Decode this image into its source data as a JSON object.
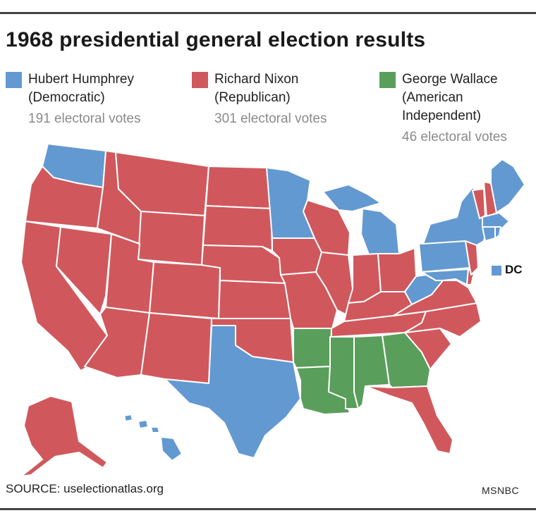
{
  "title": "1968 presidential general election results",
  "legend": [
    {
      "name_line1": "Hubert Humphrey",
      "name_line2": "(Democratic)",
      "name_line3": "",
      "votes": "191 electoral votes",
      "color": "#6399d1"
    },
    {
      "name_line1": "Richard Nixon",
      "name_line2": "(Republican)",
      "name_line3": "",
      "votes": "301 electoral votes",
      "color": "#d0585c"
    },
    {
      "name_line1": "George Wallace",
      "name_line2": "(American",
      "name_line3": "Independent)",
      "votes": "46 electoral votes",
      "color": "#5a9e5c"
    }
  ],
  "map": {
    "dc_label": "DC",
    "colors": {
      "democratic": "#6399d1",
      "republican": "#d0585c",
      "american_independent": "#5a9e5c",
      "border": "#ffffff"
    },
    "states": [
      {
        "state": "Washington",
        "winner": "democratic"
      },
      {
        "state": "Oregon",
        "winner": "republican"
      },
      {
        "state": "California",
        "winner": "republican"
      },
      {
        "state": "Nevada",
        "winner": "republican"
      },
      {
        "state": "Idaho",
        "winner": "republican"
      },
      {
        "state": "Montana",
        "winner": "republican"
      },
      {
        "state": "Wyoming",
        "winner": "republican"
      },
      {
        "state": "Utah",
        "winner": "republican"
      },
      {
        "state": "Arizona",
        "winner": "republican"
      },
      {
        "state": "Colorado",
        "winner": "republican"
      },
      {
        "state": "New Mexico",
        "winner": "republican"
      },
      {
        "state": "North Dakota",
        "winner": "republican"
      },
      {
        "state": "South Dakota",
        "winner": "republican"
      },
      {
        "state": "Nebraska",
        "winner": "republican"
      },
      {
        "state": "Kansas",
        "winner": "republican"
      },
      {
        "state": "Oklahoma",
        "winner": "republican"
      },
      {
        "state": "Texas",
        "winner": "democratic"
      },
      {
        "state": "Minnesota",
        "winner": "democratic"
      },
      {
        "state": "Iowa",
        "winner": "republican"
      },
      {
        "state": "Missouri",
        "winner": "republican"
      },
      {
        "state": "Arkansas",
        "winner": "american_independent"
      },
      {
        "state": "Louisiana",
        "winner": "american_independent"
      },
      {
        "state": "Wisconsin",
        "winner": "republican"
      },
      {
        "state": "Illinois",
        "winner": "republican"
      },
      {
        "state": "Michigan",
        "winner": "democratic"
      },
      {
        "state": "Indiana",
        "winner": "republican"
      },
      {
        "state": "Ohio",
        "winner": "republican"
      },
      {
        "state": "Kentucky",
        "winner": "republican"
      },
      {
        "state": "Tennessee",
        "winner": "republican"
      },
      {
        "state": "Mississippi",
        "winner": "american_independent"
      },
      {
        "state": "Alabama",
        "winner": "american_independent"
      },
      {
        "state": "Georgia",
        "winner": "american_independent"
      },
      {
        "state": "Florida",
        "winner": "republican"
      },
      {
        "state": "South Carolina",
        "winner": "republican"
      },
      {
        "state": "North Carolina",
        "winner": "republican"
      },
      {
        "state": "Virginia",
        "winner": "republican"
      },
      {
        "state": "West Virginia",
        "winner": "democratic"
      },
      {
        "state": "Pennsylvania",
        "winner": "democratic"
      },
      {
        "state": "New York",
        "winner": "democratic"
      },
      {
        "state": "Vermont",
        "winner": "republican"
      },
      {
        "state": "New Hampshire",
        "winner": "republican"
      },
      {
        "state": "Maine",
        "winner": "democratic"
      },
      {
        "state": "Massachusetts",
        "winner": "democratic"
      },
      {
        "state": "Rhode Island",
        "winner": "democratic"
      },
      {
        "state": "Connecticut",
        "winner": "democratic"
      },
      {
        "state": "New Jersey",
        "winner": "republican"
      },
      {
        "state": "Delaware",
        "winner": "republican"
      },
      {
        "state": "Maryland",
        "winner": "democratic"
      },
      {
        "state": "District of Columbia",
        "winner": "democratic"
      },
      {
        "state": "Alaska",
        "winner": "republican"
      },
      {
        "state": "Hawaii",
        "winner": "democratic"
      }
    ]
  },
  "source": "SOURCE: uselectionatlas.org",
  "credit": "MSNBC"
}
